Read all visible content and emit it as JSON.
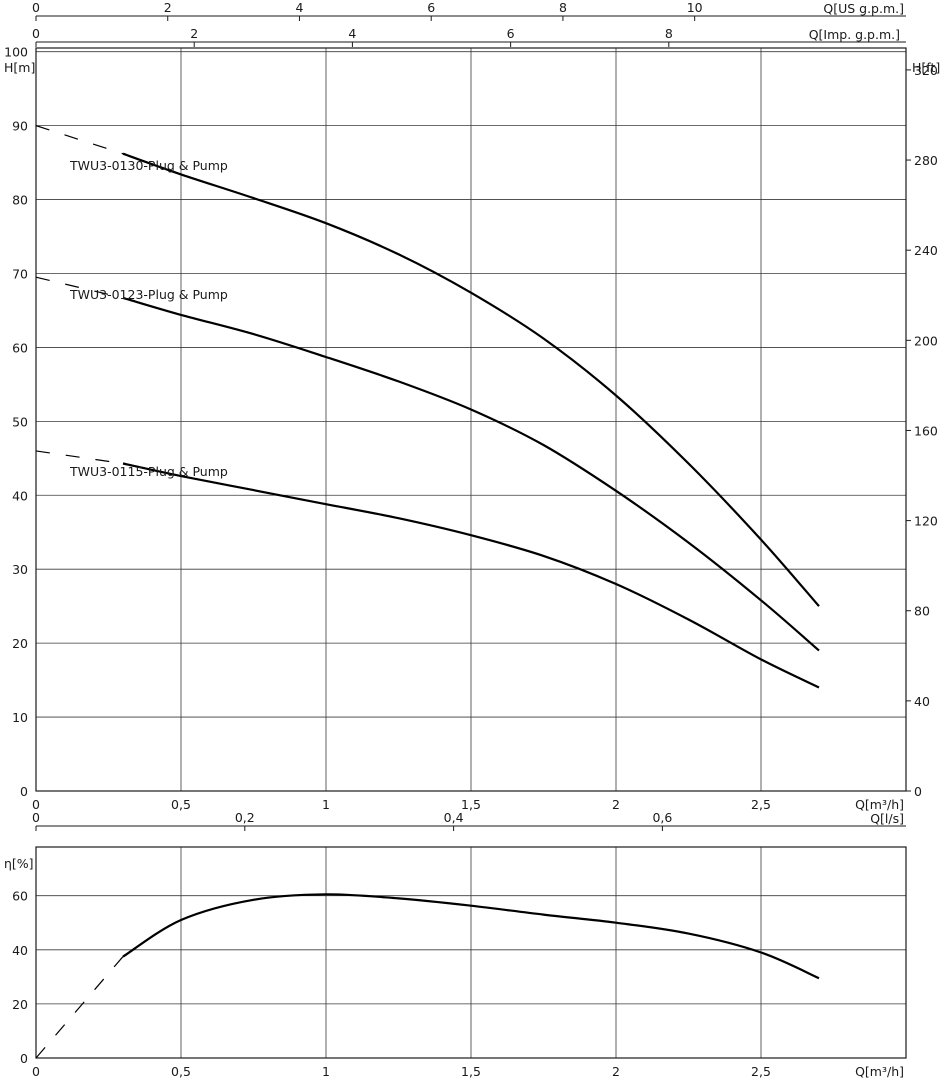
{
  "chart_data": [
    {
      "type": "line",
      "name": "head-curves",
      "x_axis": {
        "label": "Q[m³/h]",
        "range": [
          0,
          3.0
        ],
        "ticks": [
          0,
          0.5,
          1,
          1.5,
          2,
          2.5
        ],
        "tick_labels": [
          "0",
          "0,5",
          "1",
          "1,5",
          "2",
          "2,5"
        ]
      },
      "y_axis_left": {
        "label": "H[m]",
        "range": [
          0,
          100.5
        ],
        "ticks": [
          0,
          10,
          20,
          30,
          40,
          50,
          60,
          70,
          80,
          90,
          100
        ],
        "tick_labels": [
          "0",
          "10",
          "20",
          "30",
          "40",
          "50",
          "60",
          "70",
          "80",
          "90",
          "100"
        ]
      },
      "y_axis_right": {
        "label": "H[ft]",
        "ticks_ft": [
          0,
          40,
          80,
          120,
          160,
          200,
          240,
          280,
          320
        ],
        "tick_labels": [
          "0",
          "40",
          "80",
          "120",
          "160",
          "200",
          "240",
          "280",
          "320"
        ]
      },
      "top_axis_us": {
        "label": "Q[US g.p.m.]",
        "ticks": [
          0,
          2,
          4,
          6,
          8,
          10
        ],
        "tick_labels": [
          "0",
          "2",
          "4",
          "6",
          "8",
          "10"
        ]
      },
      "top_axis_imp": {
        "label": "Q[Imp. g.p.m.]",
        "ticks": [
          0,
          2,
          4,
          6,
          8
        ],
        "tick_labels": [
          "0",
          "2",
          "4",
          "6",
          "8"
        ]
      },
      "grid": true,
      "series": [
        {
          "name": "TWU3-0130-Plug & Pump",
          "x": [
            0.3,
            0.5,
            0.75,
            1.0,
            1.25,
            1.5,
            1.75,
            2.0,
            2.25,
            2.5,
            2.7
          ],
          "y": [
            86.2,
            83.4,
            80.2,
            76.8,
            72.6,
            67.4,
            61.2,
            53.5,
            44.3,
            34.0,
            25.0
          ],
          "dashed_x": [
            0.0,
            0.3
          ],
          "dashed_y": [
            90.0,
            86.2
          ]
        },
        {
          "name": "TWU3-0123-Plug & Pump",
          "x": [
            0.3,
            0.5,
            0.75,
            1.0,
            1.25,
            1.5,
            1.75,
            2.0,
            2.25,
            2.5,
            2.7
          ],
          "y": [
            66.7,
            64.4,
            61.8,
            58.7,
            55.4,
            51.6,
            46.8,
            40.6,
            33.6,
            25.8,
            19.0
          ],
          "dashed_x": [
            0.0,
            0.3
          ],
          "dashed_y": [
            69.5,
            66.7
          ]
        },
        {
          "name": "TWU3-0115-Plug & Pump",
          "x": [
            0.3,
            0.5,
            0.75,
            1.0,
            1.25,
            1.5,
            1.75,
            2.0,
            2.25,
            2.5,
            2.7
          ],
          "y": [
            44.3,
            42.6,
            40.7,
            38.8,
            36.9,
            34.6,
            31.8,
            28.0,
            23.2,
            17.8,
            14.0
          ],
          "dashed_x": [
            0.0,
            0.3
          ],
          "dashed_y": [
            46.0,
            44.3
          ]
        }
      ]
    },
    {
      "type": "line",
      "name": "efficiency-curve",
      "x_axis": {
        "label": "Q[m³/h]",
        "range": [
          0,
          3.0
        ],
        "ticks": [
          0,
          0.5,
          1,
          1.5,
          2,
          2.5
        ],
        "tick_labels": [
          "0",
          "0,5",
          "1",
          "1,5",
          "2",
          "2,5"
        ]
      },
      "top_axis_ls": {
        "label": "Q[l/s]",
        "ticks": [
          0,
          0.2,
          0.4,
          0.6
        ],
        "tick_labels": [
          "0",
          "0,2",
          "0,4",
          "0,6"
        ]
      },
      "y_axis": {
        "label": "η[%]",
        "range": [
          0,
          78
        ],
        "ticks": [
          0,
          20,
          40,
          60
        ],
        "tick_labels": [
          "0",
          "20",
          "40",
          "60"
        ]
      },
      "grid": true,
      "series": [
        {
          "x": [
            0.3,
            0.5,
            0.75,
            1.0,
            1.25,
            1.5,
            1.75,
            2.0,
            2.25,
            2.5,
            2.7
          ],
          "y": [
            37.5,
            51.0,
            58.5,
            60.5,
            59.0,
            56.3,
            53.0,
            50.0,
            46.0,
            39.0,
            29.5
          ],
          "dashed_x": [
            0.0,
            0.3
          ],
          "dashed_y": [
            0.0,
            37.5
          ]
        }
      ]
    }
  ]
}
